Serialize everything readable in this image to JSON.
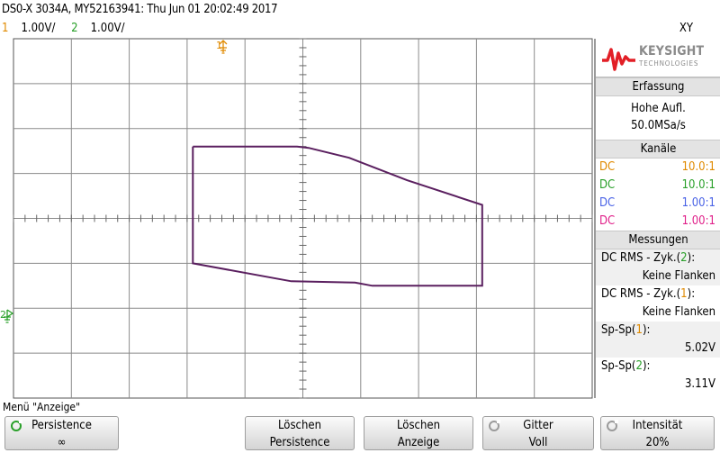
{
  "header": {
    "title": "DS0-X 3034A, MY52163941: Thu Jun 01 20:02:49 2017",
    "mode": "XY",
    "ch1_num": "1",
    "ch1_scale": "1.00V/",
    "ch2_num": "2",
    "ch2_scale": "1.00V/"
  },
  "markers": {
    "ch1": "1",
    "ch2": "2"
  },
  "panel": {
    "logo_word": "KEYSIGHT",
    "logo_sub": "TECHNOLOGIES",
    "acq_header": "Erfassung",
    "acq_mode": "Hohe Aufl.",
    "acq_rate": "50.0MSa/s",
    "channels_header": "Kanäle",
    "channels": [
      {
        "coupling": "DC",
        "probe": "10.0:1"
      },
      {
        "coupling": "DC",
        "probe": "10.0:1"
      },
      {
        "coupling": "DC",
        "probe": "1.00:1"
      },
      {
        "coupling": "DC",
        "probe": "1.00:1"
      }
    ],
    "meas_header": "Messungen",
    "m1_label_a": "DC RMS - Zyk.(",
    "m1_ch": "2",
    "m1_label_b": "):",
    "m1_value": "Keine Flanken",
    "m2_label_a": "DC RMS - Zyk.(",
    "m2_ch": "1",
    "m2_label_b": "):",
    "m2_value": "Keine Flanken",
    "m3_label_a": "Sp-Sp(",
    "m3_ch": "1",
    "m3_label_b": "):",
    "m3_value": "5.02V",
    "m4_label_a": "Sp-Sp(",
    "m4_ch": "2",
    "m4_label_b": "):",
    "m4_value": "3.11V"
  },
  "softkeys": {
    "menu_title": "Menü \"Anzeige\"",
    "persist_l1": "Persistence",
    "persist_l2": "∞",
    "clear_persist_l1": "Löschen",
    "clear_persist_l2": "Persistence",
    "clear_display_l1": "Löschen",
    "clear_display_l2": "Anzeige",
    "grid_l1": "Gitter",
    "grid_l2": "Voll",
    "intensity_l1": "Intensität",
    "intensity_l2": "20%"
  },
  "colors": {
    "ch1": "#e08a00",
    "ch2": "#2aa02a",
    "ch3": "#4a63e6",
    "ch4": "#e0208a",
    "trace": "#5a1f5f"
  },
  "chart_data": {
    "type": "line",
    "mode": "XY",
    "grid": "on",
    "x_divisions": 10,
    "y_divisions": 8,
    "x_scale_V_per_div": 1.0,
    "y_scale_V_per_div": 1.0,
    "series": [
      {
        "x": [
          -1.9,
          -0.1,
          0.1,
          0.8,
          1.8,
          3.1,
          3.1,
          1.6,
          1.2,
          0.9,
          -0.2,
          -1.9,
          -1.9
        ],
        "y": [
          1.6,
          1.6,
          1.57,
          1.35,
          0.85,
          0.3,
          -1.5,
          -1.5,
          -1.5,
          -1.43,
          -1.4,
          -1.0,
          1.6
        ]
      }
    ]
  }
}
